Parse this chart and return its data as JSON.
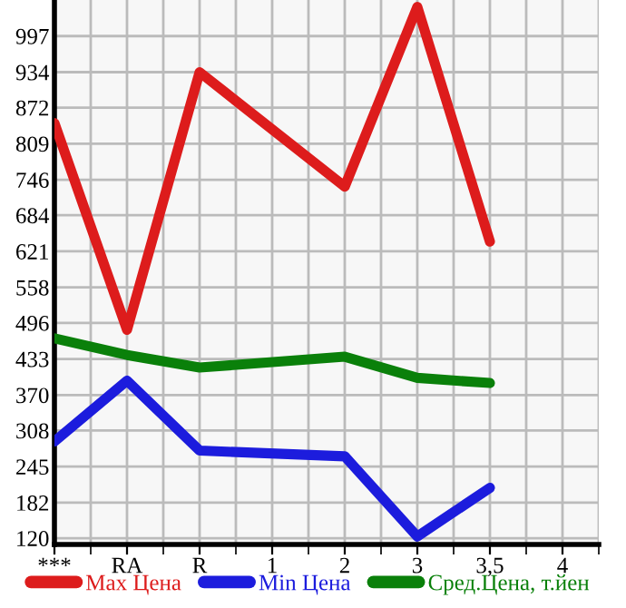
{
  "chart_data": {
    "type": "line",
    "categories": [
      "***",
      "RA",
      "R",
      "1",
      "2",
      "3",
      "3,5",
      "4"
    ],
    "series": [
      {
        "name": "Max Цена",
        "color": "#dd1c1c",
        "values": [
          845,
          484,
          934,
          null,
          734,
          1048,
          638,
          null
        ]
      },
      {
        "name": "Min Цена",
        "color": "#1c1cdd",
        "values": [
          289,
          395,
          273,
          null,
          263,
          123,
          208,
          null
        ]
      },
      {
        "name": "Сред.Цена, т.йен",
        "color": "#0a800a",
        "values": [
          469,
          440,
          418,
          null,
          437,
          400,
          391,
          null
        ]
      }
    ],
    "ylim": [
      109,
      1060
    ],
    "yticks": [
      120,
      182,
      245,
      308,
      370,
      433,
      496,
      558,
      621,
      684,
      746,
      809,
      872,
      934,
      997
    ],
    "grid": true,
    "legend": "bottom",
    "marker": "none",
    "line_style": "solid"
  }
}
